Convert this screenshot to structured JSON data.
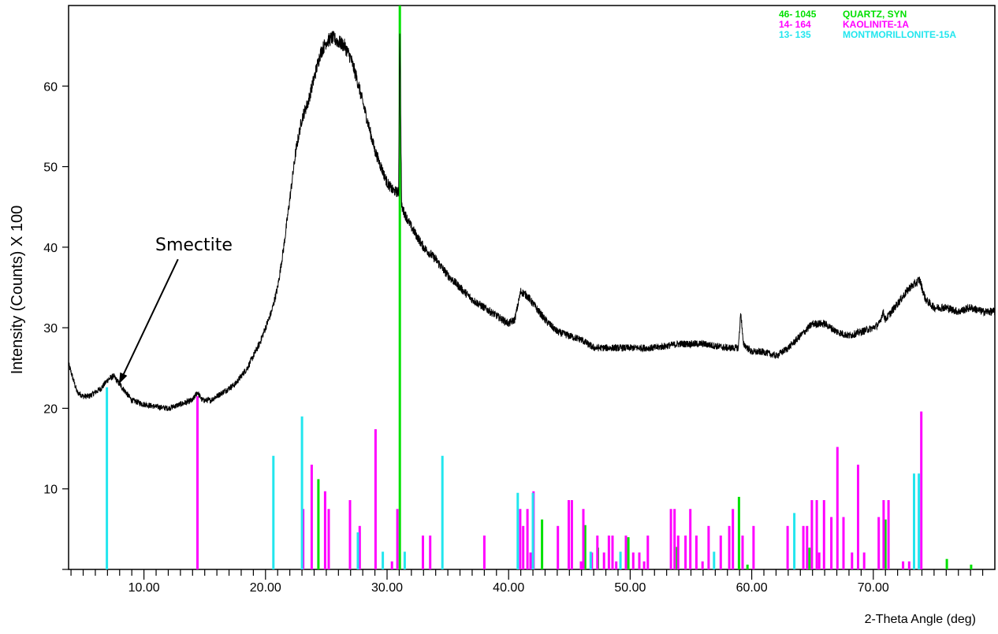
{
  "chart_data": {
    "type": "line",
    "ylabel": "Intensity (Counts) X 100",
    "xlabel": "2-Theta Angle (deg)",
    "xlim": [
      3.8,
      80.0
    ],
    "ylim": [
      0,
      70
    ],
    "x_ticks": [
      10,
      20,
      30,
      40,
      50,
      60,
      70
    ],
    "x_tick_labels": [
      "10.00",
      "20.00",
      "30.00",
      "40.00",
      "50.00",
      "60.00",
      "70.00"
    ],
    "y_ticks": [
      10,
      20,
      30,
      40,
      50,
      60
    ],
    "y_tick_labels": [
      "10",
      "20",
      "30",
      "40",
      "50",
      "60"
    ],
    "grid": false,
    "legend_position": "top-right",
    "annotation": {
      "text": "Smectite",
      "x_from": 12.8,
      "y_from": 38.5,
      "x_to": 8.0,
      "y_to": 23.2
    },
    "pattern": {
      "name": "",
      "color": "#000000",
      "x": [
        3.8,
        4.5,
        5.0,
        5.5,
        6.0,
        6.5,
        7.0,
        7.5,
        8.0,
        8.5,
        9.0,
        10.0,
        11.0,
        12.0,
        13.0,
        14.0,
        14.4,
        14.8,
        15.5,
        16.5,
        17.5,
        18.5,
        19.5,
        20.5,
        21.0,
        21.5,
        22.0,
        22.5,
        23.0,
        23.5,
        24.0,
        24.5,
        25.0,
        25.5,
        26.0,
        26.5,
        27.0,
        27.5,
        28.0,
        28.5,
        29.0,
        29.5,
        30.0,
        30.5,
        30.95,
        31.05,
        31.2,
        31.5,
        32.0,
        33.0,
        34.0,
        35.0,
        36.0,
        37.0,
        38.0,
        39.0,
        40.0,
        40.5,
        41.0,
        41.5,
        42.0,
        43.0,
        44.0,
        45.0,
        46.0,
        47.0,
        48.0,
        49.0,
        50.0,
        52.0,
        54.0,
        56.0,
        58.0,
        58.9,
        59.1,
        59.3,
        60.0,
        61.0,
        62.0,
        63.0,
        64.0,
        65.0,
        66.0,
        67.0,
        68.0,
        69.0,
        70.0,
        70.5,
        70.8,
        71.0,
        71.5,
        72.0,
        72.5,
        73.0,
        73.5,
        73.8,
        74.3,
        75.0,
        76.0,
        77.0,
        78.0,
        79.0,
        80.0
      ],
      "y": [
        25.5,
        22.0,
        21.5,
        21.5,
        22.0,
        22.5,
        23.5,
        24.0,
        23.0,
        22.0,
        21.0,
        20.5,
        20.2,
        20.0,
        20.5,
        21.0,
        22.0,
        21.0,
        21.0,
        22.0,
        23.0,
        25.0,
        28.0,
        32.0,
        35.0,
        40.0,
        46.0,
        52.0,
        56.0,
        58.0,
        61.0,
        64.0,
        65.5,
        66.0,
        65.5,
        65.0,
        63.5,
        61.0,
        58.0,
        55.0,
        52.0,
        50.0,
        48.0,
        47.0,
        46.8,
        67.0,
        45.0,
        44.0,
        42.5,
        40.0,
        38.5,
        36.5,
        35.0,
        33.5,
        32.5,
        31.5,
        30.5,
        31.0,
        34.5,
        34.0,
        33.0,
        31.0,
        29.5,
        29.0,
        28.5,
        27.5,
        27.5,
        27.5,
        27.5,
        27.5,
        28.0,
        28.0,
        27.5,
        27.5,
        32.0,
        28.0,
        27.0,
        27.0,
        26.5,
        27.5,
        29.0,
        30.5,
        30.5,
        29.5,
        29.0,
        29.5,
        30.0,
        30.5,
        32.0,
        31.0,
        32.0,
        33.0,
        34.0,
        35.0,
        35.5,
        36.0,
        33.5,
        32.5,
        32.5,
        32.0,
        32.5,
        32.0,
        32.0
      ]
    },
    "reference_series": [
      {
        "name": "QUARTZ, SYN",
        "card": "46- 1045",
        "color": "#00e000",
        "x": [
          24.35,
          31.05,
          42.75,
          46.3,
          47.35,
          49.85,
          53.85,
          58.95,
          59.65,
          64.75,
          71.0,
          76.05,
          78.05
        ],
        "y": [
          11.2,
          70.0,
          6.2,
          5.5,
          2.7,
          4.0,
          2.8,
          9.0,
          0.6,
          2.7,
          6.2,
          1.3,
          0.6
        ]
      },
      {
        "name": "KAOLINITE-1A",
        "card": "14- 164",
        "color": "#ff00ff",
        "x": [
          14.4,
          23.1,
          23.8,
          24.9,
          25.2,
          26.95,
          27.75,
          29.05,
          30.4,
          30.85,
          32.95,
          33.55,
          38.0,
          40.95,
          41.2,
          41.55,
          41.8,
          42.05,
          44.05,
          44.95,
          45.2,
          45.95,
          46.15,
          46.85,
          47.3,
          47.85,
          48.25,
          48.55,
          48.85,
          49.65,
          50.25,
          50.75,
          51.15,
          51.45,
          53.35,
          53.65,
          53.95,
          54.55,
          54.95,
          55.45,
          55.95,
          56.45,
          57.45,
          58.15,
          58.45,
          59.25,
          60.15,
          62.95,
          64.25,
          64.55,
          64.95,
          65.35,
          65.55,
          65.95,
          66.55,
          67.05,
          67.55,
          68.25,
          68.75,
          69.25,
          70.45,
          70.85,
          71.25,
          72.45,
          72.95,
          73.95
        ],
        "y": [
          21.5,
          7.5,
          13.0,
          9.7,
          7.5,
          8.6,
          5.4,
          17.4,
          1.0,
          7.5,
          4.2,
          4.2,
          4.2,
          7.5,
          5.4,
          7.5,
          2.1,
          9.7,
          5.4,
          8.6,
          8.6,
          1.0,
          7.5,
          2.1,
          4.2,
          2.1,
          4.2,
          4.2,
          1.0,
          4.2,
          2.1,
          2.1,
          1.0,
          4.2,
          7.5,
          7.5,
          4.2,
          4.2,
          7.5,
          4.2,
          1.0,
          5.4,
          4.2,
          5.4,
          7.5,
          4.2,
          5.4,
          5.4,
          5.4,
          5.4,
          8.6,
          8.6,
          2.1,
          8.6,
          6.5,
          15.2,
          6.5,
          2.1,
          13.0,
          2.1,
          6.5,
          8.6,
          8.6,
          1.0,
          1.0,
          19.6
        ]
      },
      {
        "name": "MONTMORILLONITE-15A",
        "card": "13- 135",
        "color": "#22e6ee",
        "x": [
          6.95,
          20.65,
          23.0,
          27.6,
          29.65,
          31.45,
          34.55,
          40.75,
          42.0,
          46.75,
          49.2,
          56.9,
          63.5,
          73.35,
          73.75
        ],
        "y": [
          22.6,
          14.1,
          19.0,
          4.6,
          2.2,
          2.2,
          14.1,
          9.5,
          9.5,
          2.2,
          2.2,
          2.2,
          7.0,
          11.9,
          11.9
        ]
      }
    ]
  }
}
